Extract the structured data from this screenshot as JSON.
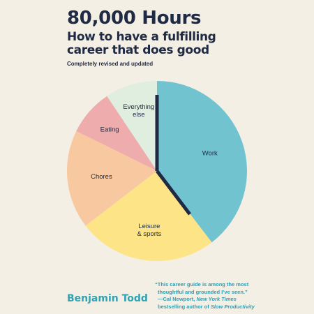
{
  "cover": {
    "title": "80,000 Hours",
    "subtitle": "How to have a fulfilling career that does good",
    "edition": "Completely revised and updated",
    "author": "Benjamin Todd",
    "quote": {
      "text": "“This career guide is among the most thoughtful and grounded I’ve seen.”",
      "line1": "“This career guide is among the most",
      "line2": "thoughtful and grounded I’ve seen.”",
      "attribution_prefix": "—Cal Newport, ",
      "attribution_source": "New York Times",
      "attribution_suffix_prefix": "bestselling author of ",
      "attribution_book": "Slow Productivity"
    }
  },
  "chart_data": {
    "type": "pie",
    "start_angle_deg": 0,
    "direction": "clockwise",
    "slices": [
      {
        "label": "Work",
        "value": 38,
        "color": "#72c3d0"
      },
      {
        "label": "Leisure\n& sports",
        "label_lines": [
          "Leisure",
          "& sports"
        ],
        "value": 24,
        "color": "#fde587"
      },
      {
        "label": "Chores",
        "label_lines": [
          "Chores"
        ],
        "value": 17,
        "color": "#f8c9a0"
      },
      {
        "label": "Eating",
        "label_lines": [
          "Eating"
        ],
        "value": 8,
        "color": "#eeadac"
      },
      {
        "label": "Everything else",
        "label_lines": [
          "Everything",
          "else"
        ],
        "value": 9,
        "color": "#dfeedf"
      }
    ],
    "hand_color": "#1f2a44"
  }
}
